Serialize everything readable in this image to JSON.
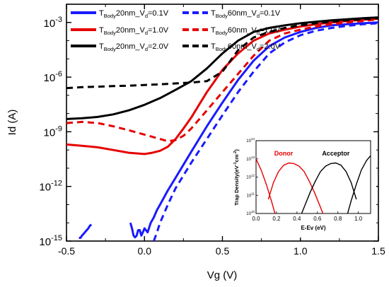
{
  "chart_data": [
    {
      "type": "line",
      "xlabel": "Vg (V)",
      "ylabel": "Id (A)",
      "y_scale": "log",
      "xlim": [
        -0.5,
        1.5
      ],
      "ylim": [
        1e-15,
        0.01
      ],
      "x_ticks": [
        "-0.5",
        "0.0",
        "0.5",
        "1.0",
        "1.5"
      ],
      "x_tick_values": [
        -0.5,
        0.0,
        0.5,
        1.0,
        1.5
      ],
      "y_ticks": [
        {
          "base": "10",
          "exp": "-15",
          "value": 1e-15
        },
        {
          "base": "10",
          "exp": "-12",
          "value": 1e-12
        },
        {
          "base": "10",
          "exp": "-9",
          "value": 1e-09
        },
        {
          "base": "10",
          "exp": "-6",
          "value": 1e-06
        },
        {
          "base": "10",
          "exp": "-3",
          "value": 0.001
        }
      ],
      "legend_position": "top",
      "series": [
        {
          "name": "T_Body20nm_Vd=0.1V",
          "name_parts": {
            "a": "T",
            "sub": "Body",
            "b": "20nm_V",
            "sub2": "d",
            "c": "=0.1V"
          },
          "color": "#1a1aff",
          "dash": "solid",
          "x": [
            -0.42,
            -0.41,
            -0.4,
            -0.39,
            -0.37,
            -0.36,
            -0.35,
            -0.34,
            null,
            -0.09,
            -0.08,
            -0.07,
            -0.06,
            -0.05,
            -0.04,
            -0.03,
            -0.02,
            -0.01,
            0.0,
            0.02,
            0.04,
            0.06,
            0.08,
            0.1,
            0.15,
            0.2,
            0.3,
            0.4,
            0.5,
            0.6,
            0.7,
            0.8,
            0.9,
            1.0,
            1.1,
            1.2,
            1.3,
            1.4,
            1.5
          ],
          "y": [
            1.5e-15,
            1.5e-15,
            2e-15,
            2.5e-15,
            4e-15,
            5e-15,
            7e-15,
            8e-15,
            null,
            1e-14,
            5e-15,
            2e-15,
            1.6e-15,
            2e-15,
            4e-15,
            4e-15,
            2e-15,
            3e-15,
            5e-15,
            3e-15,
            1e-14,
            2e-14,
            5e-14,
            1e-13,
            6e-13,
            3e-12,
            8e-11,
            2e-09,
            4e-08,
            7e-07,
            8e-06,
            5e-05,
            0.00015,
            0.0003,
            0.0005,
            0.0007,
            0.0008,
            0.0009,
            0.001
          ]
        },
        {
          "name": "T_Body60nm_Vd=0.1V",
          "name_parts": {
            "a": "T",
            "sub": "Body",
            "b": "60nm_V",
            "sub2": "d",
            "c": "=0.1V"
          },
          "color": "#1a1aff",
          "dash": "dashed",
          "x": [
            0.06,
            0.08,
            0.1,
            0.15,
            0.2,
            0.3,
            0.4,
            0.5,
            0.6,
            0.7,
            0.8,
            0.9,
            1.0,
            1.1,
            1.2,
            1.3,
            1.4,
            1.5
          ],
          "y": [
            1e-15,
            3e-15,
            1e-14,
            1e-13,
            8e-13,
            2e-11,
            4e-10,
            8e-09,
            1.5e-07,
            2e-06,
            2e-05,
            8e-05,
            0.0002,
            0.00035,
            0.0005,
            0.00065,
            0.0008,
            0.0009
          ]
        },
        {
          "name": "T_Body20nm_Vd=1.0V",
          "name_parts": {
            "a": "T",
            "sub": "Body",
            "b": "20nm_V",
            "sub2": "d",
            "c": "=1.0V"
          },
          "color": "#e60000",
          "dash": "solid",
          "x": [
            -0.5,
            -0.4,
            -0.3,
            -0.2,
            -0.1,
            0.0,
            0.05,
            0.1,
            0.15,
            0.2,
            0.25,
            0.3,
            0.35,
            0.4,
            0.45,
            0.5,
            0.6,
            0.7,
            0.8,
            0.9,
            1.0,
            1.1,
            1.2,
            1.3,
            1.4,
            1.5
          ],
          "y": [
            2e-10,
            1.7e-10,
            1.4e-10,
            1e-10,
            7e-11,
            6e-11,
            7e-11,
            9e-11,
            1.5e-10,
            4e-10,
            1.5e-09,
            6e-09,
            3e-08,
            1.5e-07,
            6e-07,
            2.5e-06,
            2e-05,
            0.0001,
            0.00025,
            0.0004,
            0.0006,
            0.0008,
            0.001,
            0.0012,
            0.0014,
            0.0016
          ]
        },
        {
          "name": "T_Body60nm_Vd=1.0V",
          "name_parts": {
            "a": "T",
            "sub": "Body",
            "b": "60nm_V",
            "sub2": "d",
            "c": "=1.0V"
          },
          "color": "#e60000",
          "dash": "dashed",
          "x": [
            -0.5,
            -0.4,
            -0.3,
            -0.2,
            -0.1,
            0.0,
            0.1,
            0.15,
            0.2,
            0.25,
            0.3,
            0.4,
            0.5,
            0.6,
            0.7,
            0.8,
            0.9,
            1.0,
            1.1,
            1.2,
            1.3,
            1.4,
            1.5
          ],
          "y": [
            3e-09,
            3.5e-09,
            3e-09,
            2e-09,
            1.2e-09,
            7e-10,
            4e-10,
            3e-10,
            3.5e-10,
            6e-10,
            1.5e-09,
            1.5e-08,
            1.5e-07,
            1.5e-06,
            1.5e-05,
            0.0001,
            0.00025,
            0.0004,
            0.0006,
            0.0008,
            0.001,
            0.0012,
            0.0015
          ]
        },
        {
          "name": "T_Body20nm_Vd=2.0V",
          "name_parts": {
            "a": "T",
            "sub": "Body",
            "b": "20nm_V",
            "sub2": "d",
            "c": "=2.0V"
          },
          "color": "#000000",
          "dash": "solid",
          "x": [
            -0.5,
            -0.4,
            -0.3,
            -0.2,
            -0.1,
            0.0,
            0.1,
            0.2,
            0.3,
            0.4,
            0.5,
            0.6,
            0.7,
            0.8,
            0.9,
            1.0,
            1.1,
            1.2,
            1.3,
            1.4,
            1.5
          ],
          "y": [
            5e-09,
            5.5e-09,
            6.5e-09,
            9e-09,
            1.5e-08,
            3e-08,
            7e-08,
            2e-07,
            6e-07,
            3e-06,
            2e-05,
            0.0001,
            0.0003,
            0.0005,
            0.0007,
            0.0009,
            0.0011,
            0.0013,
            0.0015,
            0.0017,
            0.0019
          ]
        },
        {
          "name": "T_Body60nm_Vd=2.0V",
          "name_parts": {
            "a": "T",
            "sub": "Body",
            "b": "60nm_V",
            "sub2": "d",
            "c": "=2.0V"
          },
          "color": "#000000",
          "dash": "dashed",
          "x": [
            -0.5,
            -0.4,
            -0.3,
            -0.2,
            -0.1,
            0.0,
            0.1,
            0.2,
            0.3,
            0.4,
            0.5,
            0.6,
            0.7,
            0.8,
            0.9,
            1.0,
            1.1,
            1.2,
            1.3,
            1.4,
            1.5
          ],
          "y": [
            2.5e-07,
            2.8e-07,
            3e-07,
            3.2e-07,
            3.4e-07,
            3.7e-07,
            4e-07,
            4.5e-07,
            5e-07,
            6e-07,
            2e-06,
            3e-05,
            0.00015,
            0.0003,
            0.0005,
            0.0007,
            0.0009,
            0.0011,
            0.0013,
            0.0015,
            0.0017
          ]
        }
      ]
    },
    {
      "type": "line",
      "xlabel": "E-Ev (eV)",
      "ylabel": "Trap Density(eV-1cm-2)",
      "ylabel_parts": {
        "a": "Trap Density(eV",
        "sup1": "-1",
        "b": "cm",
        "sup2": "-2",
        "c": ")"
      },
      "y_scale": "log",
      "xlim": [
        0.0,
        1.12
      ],
      "ylim": [
        10000000000.0,
        100000000000000.0
      ],
      "x_ticks": [
        "0.0",
        "0.2",
        "0.4",
        "0.6",
        "0.8",
        "1.0"
      ],
      "x_tick_values": [
        0.0,
        0.2,
        0.4,
        0.6,
        0.8,
        1.0
      ],
      "y_ticks": [
        {
          "base": "10",
          "exp": "10",
          "value": 10000000000.0
        },
        {
          "base": "10",
          "exp": "11",
          "value": 100000000000.0
        },
        {
          "base": "10",
          "exp": "12",
          "value": 1000000000000.0
        },
        {
          "base": "10",
          "exp": "13",
          "value": 10000000000000.0
        },
        {
          "base": "10",
          "exp": "14",
          "value": 100000000000000.0
        }
      ],
      "annotations": [
        {
          "text": "Donor",
          "color": "#e60000",
          "x": 0.27,
          "y": 15000000000000.0
        },
        {
          "text": "Acceptor",
          "color": "#000000",
          "x": 0.78,
          "y": 15000000000000.0
        }
      ],
      "series": [
        {
          "color": "#e60000",
          "x": [
            0.0,
            0.05,
            0.1,
            0.15,
            0.2
          ],
          "y": [
            10000000000000.0,
            2500000000000.0,
            400000000000.0,
            50000000000.0,
            5000000000.0
          ]
        },
        {
          "color": "#e60000",
          "x": [
            0.12,
            0.17,
            0.22,
            0.27,
            0.32,
            0.37,
            0.42,
            0.47,
            0.52,
            0.57,
            0.62,
            0.67
          ],
          "y": [
            60000000000.0,
            500000000000.0,
            2000000000000.0,
            4500000000000.0,
            6000000000000.0,
            5500000000000.0,
            4000000000000.0,
            2000000000000.0,
            600000000000.0,
            150000000000.0,
            30000000000.0,
            6000000000.0
          ]
        },
        {
          "color": "#000000",
          "x": [
            0.43,
            0.48,
            0.53,
            0.58,
            0.63,
            0.68,
            0.73,
            0.78,
            0.83,
            0.88,
            0.93,
            0.98
          ],
          "y": [
            6000000000.0,
            30000000000.0,
            150000000000.0,
            600000000000.0,
            2000000000000.0,
            4000000000000.0,
            5500000000000.0,
            6000000000000.0,
            4500000000000.0,
            2000000000000.0,
            500000000000.0,
            60000000000.0
          ]
        },
        {
          "color": "#000000",
          "x": [
            0.88,
            0.93,
            0.98,
            1.03,
            1.08,
            1.12
          ],
          "y": [
            5000000000.0,
            50000000000.0,
            400000000000.0,
            2500000000000.0,
            8000000000000.0,
            15000000000000.0
          ]
        }
      ]
    }
  ]
}
